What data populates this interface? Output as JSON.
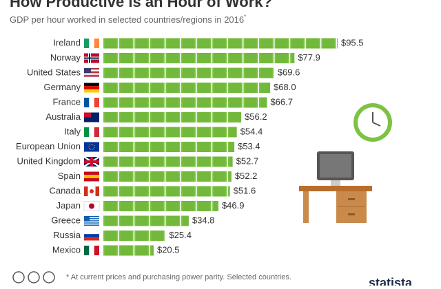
{
  "chart_data": {
    "type": "bar",
    "orientation": "horizontal",
    "title": "How Productive is an Hour of Work?",
    "subtitle": "GDP per hour worked in selected countries/regions in 2016",
    "subtitle_mark": "*",
    "footnote": "* At current prices and purchasing power parity. Selected countries.",
    "source": "statista",
    "categories": [
      "Ireland",
      "Norway",
      "United States",
      "Germany",
      "France",
      "Australia",
      "Italy",
      "European Union",
      "United Kingdom",
      "Spain",
      "Canada",
      "Japan",
      "Greece",
      "Russia",
      "Mexico"
    ],
    "values": [
      95.5,
      77.9,
      69.6,
      68.0,
      66.7,
      56.2,
      54.4,
      53.4,
      52.7,
      52.2,
      51.6,
      46.9,
      34.8,
      25.4,
      20.5
    ],
    "value_labels": [
      "$95.5",
      "$77.9",
      "$69.6",
      "$68.0",
      "$66.7",
      "$56.2",
      "$54.4",
      "$53.4",
      "$52.7",
      "$52.2",
      "$51.6",
      "$46.9",
      "$34.8",
      "$25.4",
      "$20.5"
    ],
    "color": "#7dc243"
  }
}
